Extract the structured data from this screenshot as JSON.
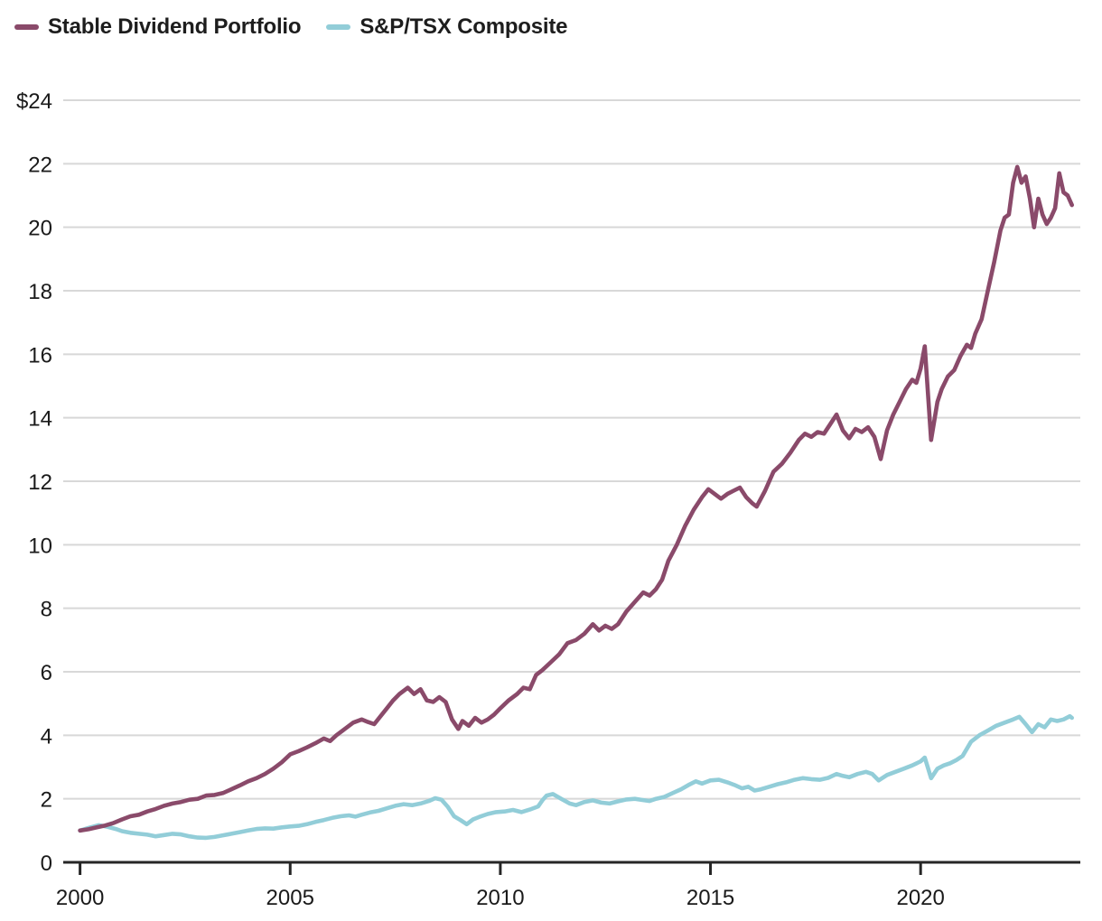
{
  "legend": [
    {
      "label": "Stable Dividend Portfolio",
      "color": "#8a4a6a",
      "swatch": "dash"
    },
    {
      "label": "S&P/TSX Composite",
      "color": "#92cdd8",
      "swatch": "dash"
    }
  ],
  "chart_data": {
    "type": "line",
    "title": "",
    "xlabel": "",
    "ylabel": "",
    "currency_prefix_on_top_tick": "$",
    "x_ticks": [
      2000,
      2005,
      2010,
      2015,
      2020
    ],
    "x_tick_labels": [
      "2000",
      "2005",
      "2010",
      "2015",
      "2020"
    ],
    "y_ticks": [
      0,
      2,
      4,
      6,
      8,
      10,
      12,
      14,
      16,
      18,
      20,
      22,
      24
    ],
    "y_tick_labels": [
      "0",
      "2",
      "4",
      "6",
      "8",
      "10",
      "12",
      "14",
      "16",
      "18",
      "20",
      "22",
      "$24"
    ],
    "xlim": [
      1999.6,
      2023.8
    ],
    "ylim": [
      0,
      24
    ],
    "grid": "horizontal-only",
    "legend_position": "top-left",
    "colors": {
      "gridline": "#d8d8d8",
      "axis": "#262626",
      "tick_text": "#1a1a1a",
      "background": "#ffffff"
    },
    "series": [
      {
        "name": "S&P/TSX Composite",
        "color": "#92cdd8",
        "points": [
          [
            2000.0,
            1.0
          ],
          [
            2000.2,
            1.08
          ],
          [
            2000.45,
            1.17
          ],
          [
            2000.65,
            1.12
          ],
          [
            2000.85,
            1.05
          ],
          [
            2001.0,
            0.98
          ],
          [
            2001.2,
            0.93
          ],
          [
            2001.4,
            0.9
          ],
          [
            2001.6,
            0.87
          ],
          [
            2001.8,
            0.82
          ],
          [
            2002.0,
            0.86
          ],
          [
            2002.2,
            0.9
          ],
          [
            2002.4,
            0.88
          ],
          [
            2002.6,
            0.82
          ],
          [
            2002.8,
            0.78
          ],
          [
            2003.0,
            0.77
          ],
          [
            2003.2,
            0.8
          ],
          [
            2003.4,
            0.85
          ],
          [
            2003.6,
            0.9
          ],
          [
            2003.8,
            0.95
          ],
          [
            2004.0,
            1.0
          ],
          [
            2004.2,
            1.05
          ],
          [
            2004.4,
            1.07
          ],
          [
            2004.6,
            1.06
          ],
          [
            2004.8,
            1.1
          ],
          [
            2005.0,
            1.13
          ],
          [
            2005.2,
            1.15
          ],
          [
            2005.4,
            1.2
          ],
          [
            2005.6,
            1.27
          ],
          [
            2005.8,
            1.33
          ],
          [
            2006.0,
            1.4
          ],
          [
            2006.2,
            1.45
          ],
          [
            2006.4,
            1.48
          ],
          [
            2006.55,
            1.44
          ],
          [
            2006.7,
            1.5
          ],
          [
            2006.9,
            1.57
          ],
          [
            2007.1,
            1.62
          ],
          [
            2007.3,
            1.7
          ],
          [
            2007.5,
            1.78
          ],
          [
            2007.7,
            1.83
          ],
          [
            2007.9,
            1.8
          ],
          [
            2008.1,
            1.85
          ],
          [
            2008.3,
            1.93
          ],
          [
            2008.45,
            2.02
          ],
          [
            2008.6,
            1.97
          ],
          [
            2008.75,
            1.75
          ],
          [
            2008.9,
            1.45
          ],
          [
            2009.05,
            1.33
          ],
          [
            2009.2,
            1.2
          ],
          [
            2009.35,
            1.35
          ],
          [
            2009.5,
            1.43
          ],
          [
            2009.7,
            1.52
          ],
          [
            2009.9,
            1.58
          ],
          [
            2010.1,
            1.6
          ],
          [
            2010.3,
            1.65
          ],
          [
            2010.5,
            1.58
          ],
          [
            2010.7,
            1.66
          ],
          [
            2010.9,
            1.76
          ],
          [
            2011.0,
            1.95
          ],
          [
            2011.1,
            2.1
          ],
          [
            2011.25,
            2.15
          ],
          [
            2011.45,
            2.0
          ],
          [
            2011.65,
            1.85
          ],
          [
            2011.8,
            1.8
          ],
          [
            2012.0,
            1.9
          ],
          [
            2012.2,
            1.95
          ],
          [
            2012.4,
            1.88
          ],
          [
            2012.6,
            1.85
          ],
          [
            2012.8,
            1.92
          ],
          [
            2013.0,
            1.98
          ],
          [
            2013.2,
            2.0
          ],
          [
            2013.4,
            1.96
          ],
          [
            2013.55,
            1.93
          ],
          [
            2013.7,
            2.0
          ],
          [
            2013.9,
            2.06
          ],
          [
            2014.1,
            2.18
          ],
          [
            2014.3,
            2.3
          ],
          [
            2014.5,
            2.45
          ],
          [
            2014.65,
            2.55
          ],
          [
            2014.8,
            2.48
          ],
          [
            2015.0,
            2.58
          ],
          [
            2015.2,
            2.6
          ],
          [
            2015.4,
            2.52
          ],
          [
            2015.6,
            2.42
          ],
          [
            2015.75,
            2.33
          ],
          [
            2015.9,
            2.38
          ],
          [
            2016.05,
            2.26
          ],
          [
            2016.2,
            2.3
          ],
          [
            2016.4,
            2.38
          ],
          [
            2016.6,
            2.46
          ],
          [
            2016.8,
            2.52
          ],
          [
            2017.0,
            2.6
          ],
          [
            2017.2,
            2.65
          ],
          [
            2017.4,
            2.62
          ],
          [
            2017.6,
            2.6
          ],
          [
            2017.8,
            2.66
          ],
          [
            2018.0,
            2.78
          ],
          [
            2018.15,
            2.72
          ],
          [
            2018.3,
            2.68
          ],
          [
            2018.5,
            2.78
          ],
          [
            2018.7,
            2.85
          ],
          [
            2018.85,
            2.78
          ],
          [
            2019.0,
            2.58
          ],
          [
            2019.2,
            2.75
          ],
          [
            2019.4,
            2.85
          ],
          [
            2019.6,
            2.95
          ],
          [
            2019.8,
            3.05
          ],
          [
            2020.0,
            3.18
          ],
          [
            2020.1,
            3.3
          ],
          [
            2020.25,
            2.65
          ],
          [
            2020.4,
            2.95
          ],
          [
            2020.55,
            3.05
          ],
          [
            2020.7,
            3.12
          ],
          [
            2020.85,
            3.22
          ],
          [
            2021.0,
            3.35
          ],
          [
            2021.2,
            3.8
          ],
          [
            2021.4,
            4.0
          ],
          [
            2021.6,
            4.15
          ],
          [
            2021.8,
            4.3
          ],
          [
            2022.0,
            4.4
          ],
          [
            2022.2,
            4.5
          ],
          [
            2022.35,
            4.58
          ],
          [
            2022.5,
            4.35
          ],
          [
            2022.65,
            4.1
          ],
          [
            2022.8,
            4.35
          ],
          [
            2022.95,
            4.25
          ],
          [
            2023.1,
            4.5
          ],
          [
            2023.25,
            4.45
          ],
          [
            2023.4,
            4.5
          ],
          [
            2023.55,
            4.6
          ],
          [
            2023.6,
            4.55
          ]
        ]
      },
      {
        "name": "Stable Dividend Portfolio",
        "color": "#8a4a6a",
        "points": [
          [
            2000.0,
            1.0
          ],
          [
            2000.2,
            1.04
          ],
          [
            2000.4,
            1.1
          ],
          [
            2000.6,
            1.16
          ],
          [
            2000.8,
            1.24
          ],
          [
            2001.0,
            1.35
          ],
          [
            2001.2,
            1.45
          ],
          [
            2001.4,
            1.5
          ],
          [
            2001.6,
            1.6
          ],
          [
            2001.8,
            1.68
          ],
          [
            2002.0,
            1.78
          ],
          [
            2002.2,
            1.85
          ],
          [
            2002.4,
            1.9
          ],
          [
            2002.6,
            1.97
          ],
          [
            2002.8,
            2.0
          ],
          [
            2003.0,
            2.1
          ],
          [
            2003.2,
            2.12
          ],
          [
            2003.4,
            2.18
          ],
          [
            2003.6,
            2.3
          ],
          [
            2003.8,
            2.42
          ],
          [
            2004.0,
            2.55
          ],
          [
            2004.2,
            2.65
          ],
          [
            2004.4,
            2.78
          ],
          [
            2004.6,
            2.95
          ],
          [
            2004.8,
            3.15
          ],
          [
            2005.0,
            3.4
          ],
          [
            2005.2,
            3.5
          ],
          [
            2005.4,
            3.62
          ],
          [
            2005.6,
            3.75
          ],
          [
            2005.8,
            3.9
          ],
          [
            2005.95,
            3.82
          ],
          [
            2006.1,
            4.0
          ],
          [
            2006.3,
            4.2
          ],
          [
            2006.5,
            4.4
          ],
          [
            2006.7,
            4.5
          ],
          [
            2006.85,
            4.42
          ],
          [
            2007.0,
            4.35
          ],
          [
            2007.15,
            4.6
          ],
          [
            2007.3,
            4.85
          ],
          [
            2007.45,
            5.1
          ],
          [
            2007.6,
            5.3
          ],
          [
            2007.8,
            5.5
          ],
          [
            2007.95,
            5.3
          ],
          [
            2008.1,
            5.45
          ],
          [
            2008.25,
            5.1
          ],
          [
            2008.4,
            5.05
          ],
          [
            2008.55,
            5.2
          ],
          [
            2008.7,
            5.05
          ],
          [
            2008.85,
            4.5
          ],
          [
            2009.0,
            4.2
          ],
          [
            2009.1,
            4.45
          ],
          [
            2009.25,
            4.3
          ],
          [
            2009.4,
            4.55
          ],
          [
            2009.55,
            4.4
          ],
          [
            2009.7,
            4.5
          ],
          [
            2009.85,
            4.65
          ],
          [
            2010.0,
            4.85
          ],
          [
            2010.2,
            5.1
          ],
          [
            2010.4,
            5.3
          ],
          [
            2010.55,
            5.5
          ],
          [
            2010.7,
            5.45
          ],
          [
            2010.85,
            5.9
          ],
          [
            2011.0,
            6.05
          ],
          [
            2011.2,
            6.3
          ],
          [
            2011.4,
            6.55
          ],
          [
            2011.6,
            6.9
          ],
          [
            2011.8,
            7.0
          ],
          [
            2012.0,
            7.2
          ],
          [
            2012.2,
            7.5
          ],
          [
            2012.35,
            7.3
          ],
          [
            2012.5,
            7.45
          ],
          [
            2012.65,
            7.35
          ],
          [
            2012.8,
            7.5
          ],
          [
            2013.0,
            7.9
          ],
          [
            2013.2,
            8.2
          ],
          [
            2013.4,
            8.5
          ],
          [
            2013.55,
            8.4
          ],
          [
            2013.7,
            8.6
          ],
          [
            2013.85,
            8.9
          ],
          [
            2014.0,
            9.5
          ],
          [
            2014.2,
            10.0
          ],
          [
            2014.4,
            10.6
          ],
          [
            2014.6,
            11.1
          ],
          [
            2014.8,
            11.5
          ],
          [
            2014.95,
            11.75
          ],
          [
            2015.1,
            11.6
          ],
          [
            2015.25,
            11.45
          ],
          [
            2015.4,
            11.6
          ],
          [
            2015.55,
            11.7
          ],
          [
            2015.7,
            11.8
          ],
          [
            2015.85,
            11.5
          ],
          [
            2016.0,
            11.3
          ],
          [
            2016.1,
            11.2
          ],
          [
            2016.3,
            11.7
          ],
          [
            2016.5,
            12.3
          ],
          [
            2016.7,
            12.55
          ],
          [
            2016.9,
            12.9
          ],
          [
            2017.1,
            13.3
          ],
          [
            2017.25,
            13.5
          ],
          [
            2017.4,
            13.4
          ],
          [
            2017.55,
            13.55
          ],
          [
            2017.7,
            13.5
          ],
          [
            2017.85,
            13.8
          ],
          [
            2018.0,
            14.1
          ],
          [
            2018.15,
            13.6
          ],
          [
            2018.3,
            13.35
          ],
          [
            2018.45,
            13.65
          ],
          [
            2018.6,
            13.55
          ],
          [
            2018.75,
            13.7
          ],
          [
            2018.9,
            13.4
          ],
          [
            2019.05,
            12.7
          ],
          [
            2019.2,
            13.6
          ],
          [
            2019.35,
            14.1
          ],
          [
            2019.5,
            14.5
          ],
          [
            2019.65,
            14.9
          ],
          [
            2019.8,
            15.2
          ],
          [
            2019.9,
            15.1
          ],
          [
            2020.0,
            15.55
          ],
          [
            2020.1,
            16.25
          ],
          [
            2020.25,
            13.3
          ],
          [
            2020.4,
            14.5
          ],
          [
            2020.5,
            14.9
          ],
          [
            2020.65,
            15.3
          ],
          [
            2020.8,
            15.5
          ],
          [
            2020.95,
            15.95
          ],
          [
            2021.1,
            16.3
          ],
          [
            2021.2,
            16.2
          ],
          [
            2021.3,
            16.65
          ],
          [
            2021.45,
            17.1
          ],
          [
            2021.6,
            18.0
          ],
          [
            2021.75,
            18.9
          ],
          [
            2021.9,
            19.9
          ],
          [
            2022.0,
            20.3
          ],
          [
            2022.1,
            20.4
          ],
          [
            2022.2,
            21.4
          ],
          [
            2022.3,
            21.9
          ],
          [
            2022.4,
            21.4
          ],
          [
            2022.5,
            21.6
          ],
          [
            2022.6,
            20.9
          ],
          [
            2022.7,
            20.0
          ],
          [
            2022.8,
            20.9
          ],
          [
            2022.9,
            20.4
          ],
          [
            2023.0,
            20.1
          ],
          [
            2023.1,
            20.3
          ],
          [
            2023.2,
            20.6
          ],
          [
            2023.3,
            21.7
          ],
          [
            2023.4,
            21.1
          ],
          [
            2023.5,
            21.0
          ],
          [
            2023.6,
            20.7
          ]
        ]
      }
    ]
  }
}
